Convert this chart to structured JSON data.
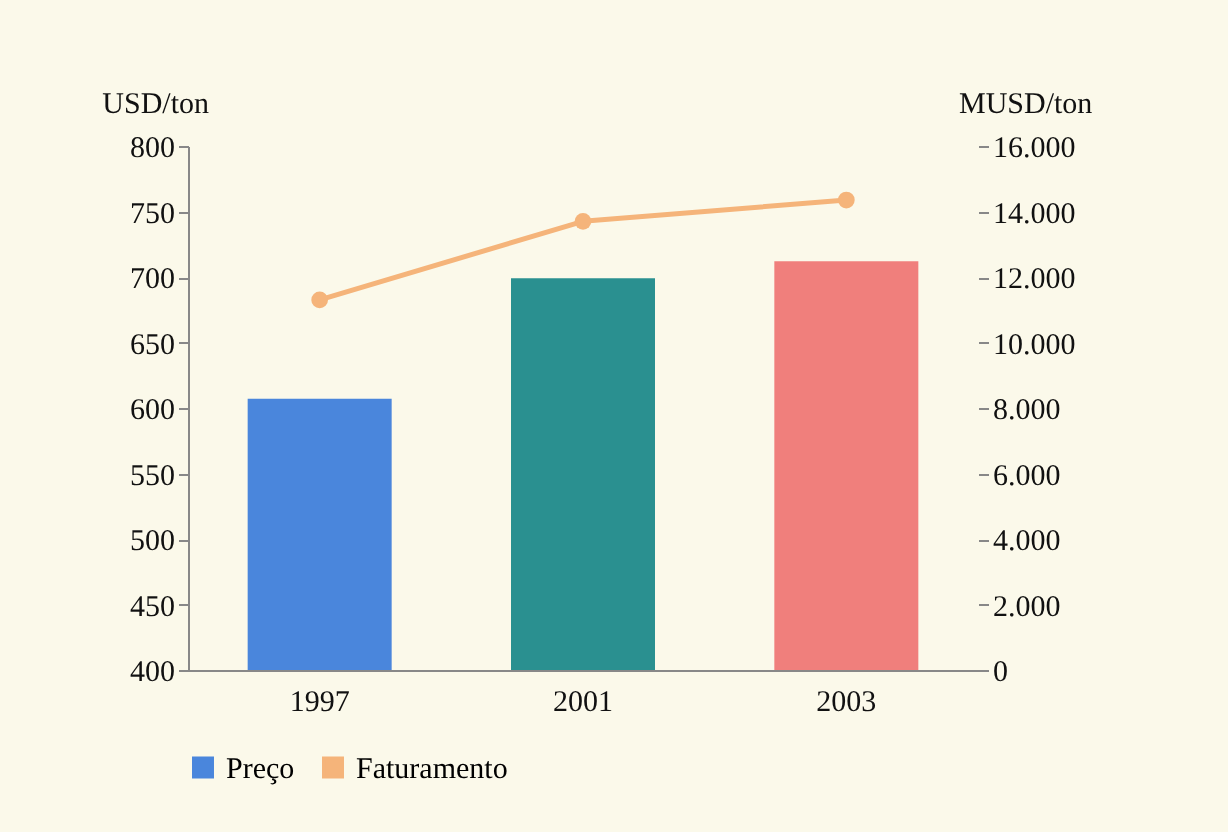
{
  "chart_data": {
    "type": "bar",
    "categories": [
      "1997",
      "2001",
      "2003"
    ],
    "ylabel": "USD/ton",
    "y2label": "MUSD/ton",
    "ylim": [
      400,
      800
    ],
    "yticks": [
      400,
      450,
      500,
      550,
      600,
      650,
      700,
      750,
      800
    ],
    "y2lim": [
      0,
      16000
    ],
    "y2ticks": [
      0,
      {
        "value": 2000,
        "label": "2.000"
      },
      {
        "value": 4000,
        "label": "4.000"
      },
      {
        "value": 6000,
        "label": "6.000"
      },
      {
        "value": 8000,
        "label": "8.000"
      },
      {
        "value": 10000,
        "label": "10.000"
      },
      {
        "value": 12000,
        "label": "12.000"
      },
      {
        "value": 14000,
        "label": "14.000"
      },
      {
        "value": 16000,
        "label": "16.000"
      }
    ],
    "series": [
      {
        "name": "Preço",
        "color": "#4a86dc",
        "colors": [
          "#4a86dc",
          "#2a9090",
          "#f07f7c"
        ],
        "values": [
          607,
          699,
          712
        ]
      },
      {
        "name": "Faturamento",
        "type": "line",
        "axis": "y2",
        "color": "#f5b47a",
        "marker": "circle",
        "values": [
          11300,
          13700,
          14350
        ]
      }
    ],
    "legend": "bottom"
  }
}
